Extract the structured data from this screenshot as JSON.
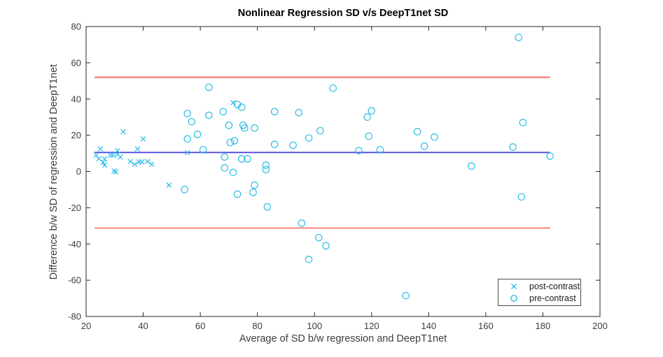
{
  "title": "Nonlinear Regression SD v/s DeepT1net SD",
  "xlabel": "Average of SD b/w regression and DeepT1net",
  "ylabel": "Difference b/w SD of regression and DeepT1net",
  "legend": {
    "items": [
      {
        "label": "post-contrast",
        "marker": "x"
      },
      {
        "label": "pre-contrast",
        "marker": "o"
      }
    ]
  },
  "colors": {
    "marker": "#29bbe7",
    "mean_line": "#5552e0",
    "upper_loa_line": "#f66a62",
    "lower_loa_line": "#f3544a",
    "axis": "#262626",
    "tick_text": "#3d3d3d"
  },
  "chart_data": {
    "type": "scatter",
    "title": "Nonlinear Regression SD v/s DeepT1net SD",
    "xlabel": "Average of SD b/w regression and DeepT1net",
    "ylabel": "Difference b/w SD of regression and DeepT1net",
    "xlim": [
      20,
      200
    ],
    "ylim": [
      -80,
      80
    ],
    "xticks": [
      20,
      40,
      60,
      80,
      100,
      120,
      140,
      160,
      180,
      200
    ],
    "yticks": [
      -80,
      -60,
      -40,
      -20,
      0,
      20,
      40,
      60,
      80
    ],
    "grid": false,
    "legend_position": "lower-right",
    "series": [
      {
        "name": "post-contrast",
        "marker": "x",
        "points": [
          [
            33,
            22
          ],
          [
            40,
            18
          ],
          [
            25,
            12.5
          ],
          [
            23.5,
            9
          ],
          [
            24.5,
            7
          ],
          [
            26.5,
            7
          ],
          [
            26,
            5
          ],
          [
            28.5,
            9
          ],
          [
            29.5,
            9
          ],
          [
            31,
            11.5
          ],
          [
            31,
            9.5
          ],
          [
            32,
            8
          ],
          [
            26.5,
            3.5
          ],
          [
            29.8,
            0.3
          ],
          [
            30.4,
            -0.2
          ],
          [
            35.5,
            5.5
          ],
          [
            37,
            4
          ],
          [
            38.5,
            5.3
          ],
          [
            39.5,
            5.3
          ],
          [
            41.5,
            5.5
          ],
          [
            43,
            4
          ],
          [
            38,
            12.5
          ],
          [
            49,
            -7.5
          ],
          [
            55.5,
            10.5
          ],
          [
            71.5,
            38
          ]
        ]
      },
      {
        "name": "pre-contrast",
        "marker": "o",
        "points": [
          [
            63,
            46.5
          ],
          [
            55.5,
            32
          ],
          [
            57,
            27.5
          ],
          [
            63,
            31
          ],
          [
            68,
            33
          ],
          [
            59,
            20.5
          ],
          [
            55.5,
            18
          ],
          [
            61,
            12
          ],
          [
            68.5,
            8
          ],
          [
            73,
            37
          ],
          [
            74.5,
            35.5
          ],
          [
            70,
            25.5
          ],
          [
            75,
            25.5
          ],
          [
            75.5,
            24
          ],
          [
            79,
            24
          ],
          [
            70.5,
            16
          ],
          [
            72,
            17
          ],
          [
            74.5,
            7
          ],
          [
            76.5,
            7
          ],
          [
            68.5,
            2
          ],
          [
            71.5,
            -0.5
          ],
          [
            83,
            3.5
          ],
          [
            83,
            1
          ],
          [
            79,
            -7.5
          ],
          [
            78.5,
            -11.5
          ],
          [
            73,
            -12.5
          ],
          [
            54.5,
            -10
          ],
          [
            83.5,
            -19.5
          ],
          [
            86,
            33
          ],
          [
            94.5,
            32.5
          ],
          [
            106.5,
            46
          ],
          [
            102,
            22.5
          ],
          [
            98,
            18.5
          ],
          [
            86,
            15
          ],
          [
            92.5,
            14.5
          ],
          [
            120,
            33.5
          ],
          [
            118.5,
            30
          ],
          [
            119,
            19.5
          ],
          [
            115.5,
            11.5
          ],
          [
            123,
            12
          ],
          [
            136,
            22
          ],
          [
            142,
            19
          ],
          [
            138.5,
            14
          ],
          [
            155,
            3
          ],
          [
            169.5,
            13.5
          ],
          [
            173,
            27
          ],
          [
            171.5,
            74
          ],
          [
            182.5,
            8.5
          ],
          [
            172.5,
            -14
          ],
          [
            95.5,
            -28.5
          ],
          [
            101.5,
            -36.5
          ],
          [
            104,
            -41
          ],
          [
            98,
            -48.5
          ],
          [
            132,
            -68.5
          ]
        ]
      }
    ],
    "reference_lines": [
      {
        "name": "mean",
        "y": 10.5,
        "x_start": 23,
        "x_end": 182.5
      },
      {
        "name": "upper-loa",
        "y": 52,
        "x_start": 23,
        "x_end": 182.5
      },
      {
        "name": "lower-loa",
        "y": -31.2,
        "x_start": 23,
        "x_end": 182.5
      }
    ]
  }
}
